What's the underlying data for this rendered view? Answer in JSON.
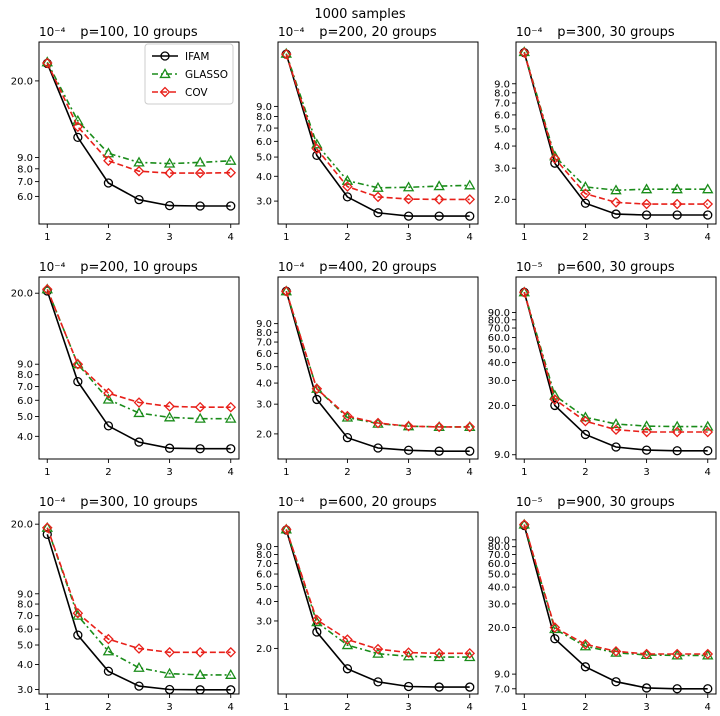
{
  "figure": {
    "suptitle": "1000 samples"
  },
  "legend": [
    {
      "name": "IFAM",
      "color": "#000000",
      "marker": "circle",
      "dash": "solid"
    },
    {
      "name": "GLASSO",
      "color": "#1a8c1a",
      "marker": "triangle",
      "dash": "dashdot"
    },
    {
      "name": "COV",
      "color": "#e8201a",
      "marker": "diamond",
      "dash": "dashed"
    }
  ],
  "chart_data": [
    {
      "type": "line",
      "title": "p=100, 10 groups",
      "scale_label": "10⁻⁴",
      "yscale": "log",
      "x": [
        1,
        1.5,
        2,
        2.5,
        3,
        3.5,
        4
      ],
      "xticks": [
        {
          "v": 1,
          "label": "1"
        },
        {
          "v": 2,
          "label": "2"
        },
        {
          "v": 3,
          "label": "3"
        },
        {
          "v": 4,
          "label": "4"
        }
      ],
      "ylim": [
        4.5,
        30
      ],
      "yticks": [
        {
          "v": 20,
          "label": "20.0"
        },
        {
          "v": 9,
          "label": "9.0"
        },
        {
          "v": 8,
          "label": "8.0"
        },
        {
          "v": 7,
          "label": "7.0"
        },
        {
          "v": 6,
          "label": "6.0"
        }
      ],
      "series": [
        {
          "name": "IFAM",
          "values": [
            24,
            11.1,
            6.9,
            5.8,
            5.45,
            5.43,
            5.43
          ]
        },
        {
          "name": "GLASSO",
          "values": [
            24.3,
            13.2,
            9.4,
            8.55,
            8.45,
            8.55,
            8.7
          ]
        },
        {
          "name": "COV",
          "values": [
            24.1,
            12.4,
            8.7,
            7.8,
            7.65,
            7.65,
            7.68
          ]
        }
      ]
    },
    {
      "type": "line",
      "title": "p=200, 20 groups",
      "scale_label": "10⁻⁴",
      "yscale": "log",
      "x": [
        1,
        1.5,
        2,
        2.5,
        3,
        3.5,
        4
      ],
      "xticks": [
        {
          "v": 1,
          "label": "1"
        },
        {
          "v": 2,
          "label": "2"
        },
        {
          "v": 3,
          "label": "3"
        },
        {
          "v": 4,
          "label": "4"
        }
      ],
      "ylim": [
        2.3,
        19
      ],
      "yticks": [
        {
          "v": 9,
          "label": "9.0"
        },
        {
          "v": 8,
          "label": "8.0"
        },
        {
          "v": 7,
          "label": "7.0"
        },
        {
          "v": 6,
          "label": "6.0"
        },
        {
          "v": 5,
          "label": "5.0"
        },
        {
          "v": 4,
          "label": "4.0"
        },
        {
          "v": 3,
          "label": "3.0"
        }
      ],
      "series": [
        {
          "name": "IFAM",
          "values": [
            16.5,
            5.1,
            3.15,
            2.62,
            2.52,
            2.52,
            2.52
          ]
        },
        {
          "name": "GLASSO",
          "values": [
            16.6,
            5.8,
            3.8,
            3.5,
            3.52,
            3.57,
            3.6
          ]
        },
        {
          "name": "COV",
          "values": [
            16.5,
            5.5,
            3.55,
            3.15,
            3.07,
            3.06,
            3.06
          ]
        }
      ]
    },
    {
      "type": "line",
      "title": "p=300, 30 groups",
      "scale_label": "10⁻⁴",
      "yscale": "log",
      "x": [
        1,
        1.5,
        2,
        2.5,
        3,
        3.5,
        4
      ],
      "xticks": [
        {
          "v": 1,
          "label": "1"
        },
        {
          "v": 2,
          "label": "2"
        },
        {
          "v": 3,
          "label": "3"
        },
        {
          "v": 4,
          "label": "4"
        }
      ],
      "ylim": [
        1.45,
        15.5
      ],
      "yticks": [
        {
          "v": 9,
          "label": "9.0"
        },
        {
          "v": 8,
          "label": "8.0"
        },
        {
          "v": 7,
          "label": "7.0"
        },
        {
          "v": 6,
          "label": "6.0"
        },
        {
          "v": 5,
          "label": "5.0"
        },
        {
          "v": 4,
          "label": "4.0"
        },
        {
          "v": 3,
          "label": "3.0"
        },
        {
          "v": 2,
          "label": "2.0"
        }
      ],
      "series": [
        {
          "name": "IFAM",
          "values": [
            13.5,
            3.2,
            1.9,
            1.65,
            1.63,
            1.63,
            1.63
          ]
        },
        {
          "name": "GLASSO",
          "values": [
            13.6,
            3.5,
            2.35,
            2.25,
            2.28,
            2.28,
            2.28
          ]
        },
        {
          "name": "COV",
          "values": [
            13.5,
            3.4,
            2.15,
            1.92,
            1.88,
            1.88,
            1.88
          ]
        }
      ]
    },
    {
      "type": "line",
      "title": "p=200, 10 groups",
      "scale_label": "10⁻⁴",
      "yscale": "log",
      "x": [
        1,
        1.5,
        2,
        2.5,
        3,
        3.5,
        4
      ],
      "xticks": [
        {
          "v": 1,
          "label": "1"
        },
        {
          "v": 2,
          "label": "2"
        },
        {
          "v": 3,
          "label": "3"
        },
        {
          "v": 4,
          "label": "4"
        }
      ],
      "ylim": [
        3.1,
        24
      ],
      "yticks": [
        {
          "v": 20,
          "label": "20.0"
        },
        {
          "v": 9,
          "label": "9.0"
        },
        {
          "v": 8,
          "label": "8.0"
        },
        {
          "v": 7,
          "label": "7.0"
        },
        {
          "v": 6,
          "label": "6.0"
        },
        {
          "v": 5,
          "label": "5.0"
        },
        {
          "v": 4,
          "label": "4.0"
        }
      ],
      "series": [
        {
          "name": "IFAM",
          "values": [
            20.5,
            7.4,
            4.5,
            3.75,
            3.5,
            3.48,
            3.48
          ]
        },
        {
          "name": "GLASSO",
          "values": [
            20.9,
            9.0,
            6.05,
            5.2,
            4.95,
            4.88,
            4.88
          ]
        },
        {
          "name": "COV",
          "values": [
            20.9,
            9.0,
            6.5,
            5.85,
            5.6,
            5.55,
            5.55
          ]
        }
      ]
    },
    {
      "type": "line",
      "title": "p=400, 20 groups",
      "scale_label": "10⁻⁴",
      "yscale": "log",
      "x": [
        1,
        1.5,
        2,
        2.5,
        3,
        3.5,
        4
      ],
      "xticks": [
        {
          "v": 1,
          "label": "1"
        },
        {
          "v": 2,
          "label": "2"
        },
        {
          "v": 3,
          "label": "3"
        },
        {
          "v": 4,
          "label": "4"
        }
      ],
      "ylim": [
        1.42,
        17
      ],
      "yticks": [
        {
          "v": 9,
          "label": "9.0"
        },
        {
          "v": 8,
          "label": "8.0"
        },
        {
          "v": 7,
          "label": "7.0"
        },
        {
          "v": 6,
          "label": "6.0"
        },
        {
          "v": 5,
          "label": "5.0"
        },
        {
          "v": 4,
          "label": "4.0"
        },
        {
          "v": 3,
          "label": "3.0"
        },
        {
          "v": 2,
          "label": "2.0"
        }
      ],
      "series": [
        {
          "name": "IFAM",
          "values": [
            14,
            3.2,
            1.9,
            1.65,
            1.6,
            1.58,
            1.58
          ]
        },
        {
          "name": "GLASSO",
          "values": [
            14,
            3.7,
            2.5,
            2.3,
            2.22,
            2.2,
            2.2
          ]
        },
        {
          "name": "COV",
          "values": [
            14,
            3.7,
            2.55,
            2.32,
            2.22,
            2.2,
            2.2
          ]
        }
      ]
    },
    {
      "type": "line",
      "title": "p=600, 30 groups",
      "scale_label": "10⁻⁵",
      "yscale": "log",
      "x": [
        1,
        1.5,
        2,
        2.5,
        3,
        3.5,
        4
      ],
      "xticks": [
        {
          "v": 1,
          "label": "1"
        },
        {
          "v": 2,
          "label": "2"
        },
        {
          "v": 3,
          "label": "3"
        },
        {
          "v": 4,
          "label": "4"
        }
      ],
      "ylim": [
        8.4,
        160
      ],
      "yticks": [
        {
          "v": 90,
          "label": "90.0"
        },
        {
          "v": 80,
          "label": "80.0"
        },
        {
          "v": 70,
          "label": "70.0"
        },
        {
          "v": 60,
          "label": "60.0"
        },
        {
          "v": 50,
          "label": "50.0"
        },
        {
          "v": 40,
          "label": "40.0"
        },
        {
          "v": 30,
          "label": "30.0"
        },
        {
          "v": 20,
          "label": "20.0"
        },
        {
          "v": 9,
          "label": "9.0"
        }
      ],
      "series": [
        {
          "name": "IFAM",
          "values": [
            125,
            20,
            12.5,
            10.2,
            9.7,
            9.6,
            9.6
          ]
        },
        {
          "name": "GLASSO",
          "values": [
            125,
            23.5,
            16.5,
            14.8,
            14.3,
            14.2,
            14.2
          ]
        },
        {
          "name": "COV",
          "values": [
            125,
            22,
            15.5,
            13.5,
            13.0,
            13.0,
            13.0
          ]
        }
      ]
    },
    {
      "type": "line",
      "title": "p=300, 10 groups",
      "scale_label": "10⁻⁴",
      "yscale": "log",
      "x": [
        1,
        1.5,
        2,
        2.5,
        3,
        3.5,
        4
      ],
      "xticks": [
        {
          "v": 1,
          "label": "1"
        },
        {
          "v": 2,
          "label": "2"
        },
        {
          "v": 3,
          "label": "3"
        },
        {
          "v": 4,
          "label": "4"
        }
      ],
      "ylim": [
        2.85,
        23
      ],
      "yticks": [
        {
          "v": 20,
          "label": "20.0"
        },
        {
          "v": 9,
          "label": "9.0"
        },
        {
          "v": 8,
          "label": "8.0"
        },
        {
          "v": 7,
          "label": "7.0"
        },
        {
          "v": 6,
          "label": "6.0"
        },
        {
          "v": 5,
          "label": "5.0"
        },
        {
          "v": 4,
          "label": "4.0"
        },
        {
          "v": 3,
          "label": "3.0"
        }
      ],
      "series": [
        {
          "name": "IFAM",
          "values": [
            17.8,
            5.6,
            3.7,
            3.12,
            3.0,
            2.99,
            2.99
          ]
        },
        {
          "name": "GLASSO",
          "values": [
            19.2,
            7.0,
            4.65,
            3.85,
            3.6,
            3.55,
            3.55
          ]
        },
        {
          "name": "COV",
          "values": [
            19.2,
            7.2,
            5.35,
            4.8,
            4.6,
            4.6,
            4.6
          ]
        }
      ]
    },
    {
      "type": "line",
      "title": "p=600, 20 groups",
      "scale_label": "10⁻⁴",
      "yscale": "log",
      "x": [
        1,
        1.5,
        2,
        2.5,
        3,
        3.5,
        4
      ],
      "xticks": [
        {
          "v": 1,
          "label": "1"
        },
        {
          "v": 2,
          "label": "2"
        },
        {
          "v": 3,
          "label": "3"
        },
        {
          "v": 4,
          "label": "4"
        }
      ],
      "ylim": [
        1.02,
        15
      ],
      "yticks": [
        {
          "v": 9,
          "label": "9.0"
        },
        {
          "v": 8,
          "label": "8.0"
        },
        {
          "v": 7,
          "label": "7.0"
        },
        {
          "v": 6,
          "label": "6.0"
        },
        {
          "v": 5,
          "label": "5.0"
        },
        {
          "v": 4,
          "label": "4.0"
        },
        {
          "v": 3,
          "label": "3.0"
        },
        {
          "v": 2,
          "label": "2.0"
        }
      ],
      "series": [
        {
          "name": "IFAM",
          "values": [
            11.5,
            2.55,
            1.48,
            1.22,
            1.14,
            1.13,
            1.13
          ]
        },
        {
          "name": "GLASSO",
          "values": [
            11.6,
            2.95,
            2.1,
            1.85,
            1.78,
            1.76,
            1.76
          ]
        },
        {
          "name": "COV",
          "values": [
            11.6,
            3.05,
            2.28,
            1.98,
            1.88,
            1.86,
            1.86
          ]
        }
      ]
    },
    {
      "type": "line",
      "title": "p=900, 30 groups",
      "scale_label": "10⁻⁵",
      "yscale": "log",
      "x": [
        1,
        1.5,
        2,
        2.5,
        3,
        3.5,
        4
      ],
      "xticks": [
        {
          "v": 1,
          "label": "1"
        },
        {
          "v": 2,
          "label": "2"
        },
        {
          "v": 3,
          "label": "3"
        },
        {
          "v": 4,
          "label": "4"
        }
      ],
      "ylim": [
        6.4,
        145
      ],
      "yticks": [
        {
          "v": 90,
          "label": "90.0"
        },
        {
          "v": 80,
          "label": "80.0"
        },
        {
          "v": 70,
          "label": "70.0"
        },
        {
          "v": 60,
          "label": "60.0"
        },
        {
          "v": 50,
          "label": "50.0"
        },
        {
          "v": 40,
          "label": "40.0"
        },
        {
          "v": 30,
          "label": "30.0"
        },
        {
          "v": 20,
          "label": "20.0"
        },
        {
          "v": 9,
          "label": "9.0"
        },
        {
          "v": 7,
          "label": "7.0"
        }
      ],
      "series": [
        {
          "name": "IFAM",
          "values": [
            115,
            16.5,
            10.2,
            7.9,
            7.1,
            7.0,
            7.0
          ]
        },
        {
          "name": "GLASSO",
          "values": [
            117,
            19.5,
            14.5,
            13.0,
            12.5,
            12.4,
            12.4
          ]
        },
        {
          "name": "COV",
          "values": [
            117,
            20.0,
            15.0,
            13.3,
            12.7,
            12.7,
            12.7
          ]
        }
      ]
    }
  ]
}
